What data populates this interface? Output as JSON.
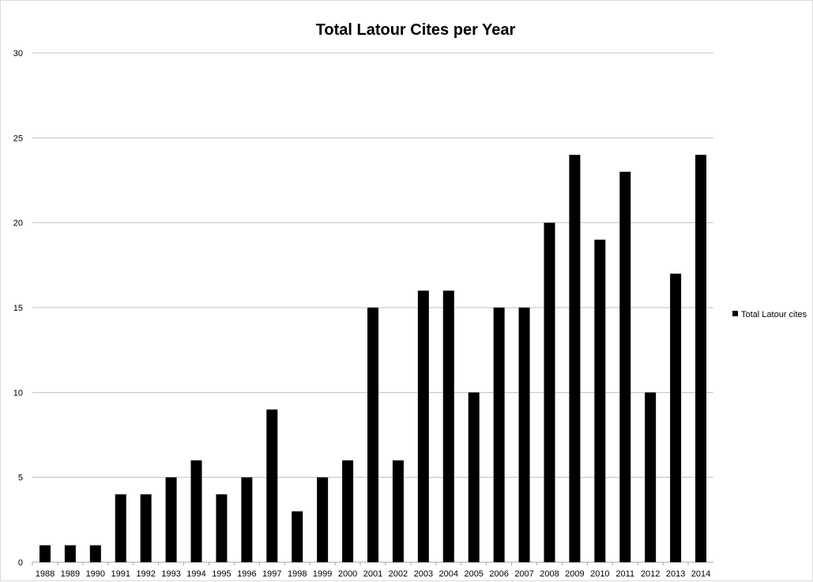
{
  "chart_data": {
    "type": "bar",
    "title": "Total Latour Cites per Year",
    "xlabel": "",
    "ylabel": "",
    "categories": [
      "1988",
      "1989",
      "1990",
      "1991",
      "1992",
      "1993",
      "1994",
      "1995",
      "1996",
      "1997",
      "1998",
      "1999",
      "2000",
      "2001",
      "2002",
      "2003",
      "2004",
      "2005",
      "2006",
      "2007",
      "2008",
      "2009",
      "2010",
      "2011",
      "2012",
      "2013",
      "2014"
    ],
    "series": [
      {
        "name": "Total Latour cites",
        "values": [
          1,
          1,
          1,
          4,
          4,
          5,
          6,
          4,
          5,
          9,
          3,
          5,
          6,
          15,
          6,
          16,
          16,
          10,
          15,
          15,
          20,
          24,
          19,
          23,
          10,
          17,
          24
        ]
      }
    ],
    "ylim": [
      0,
      30
    ],
    "yticks": [
      0,
      5,
      10,
      15,
      20,
      25,
      30
    ],
    "grid": true,
    "legend": "right",
    "colors": {
      "bar": "#000000",
      "grid": "#c0c0c0",
      "axis": "#a6a6a6"
    }
  }
}
